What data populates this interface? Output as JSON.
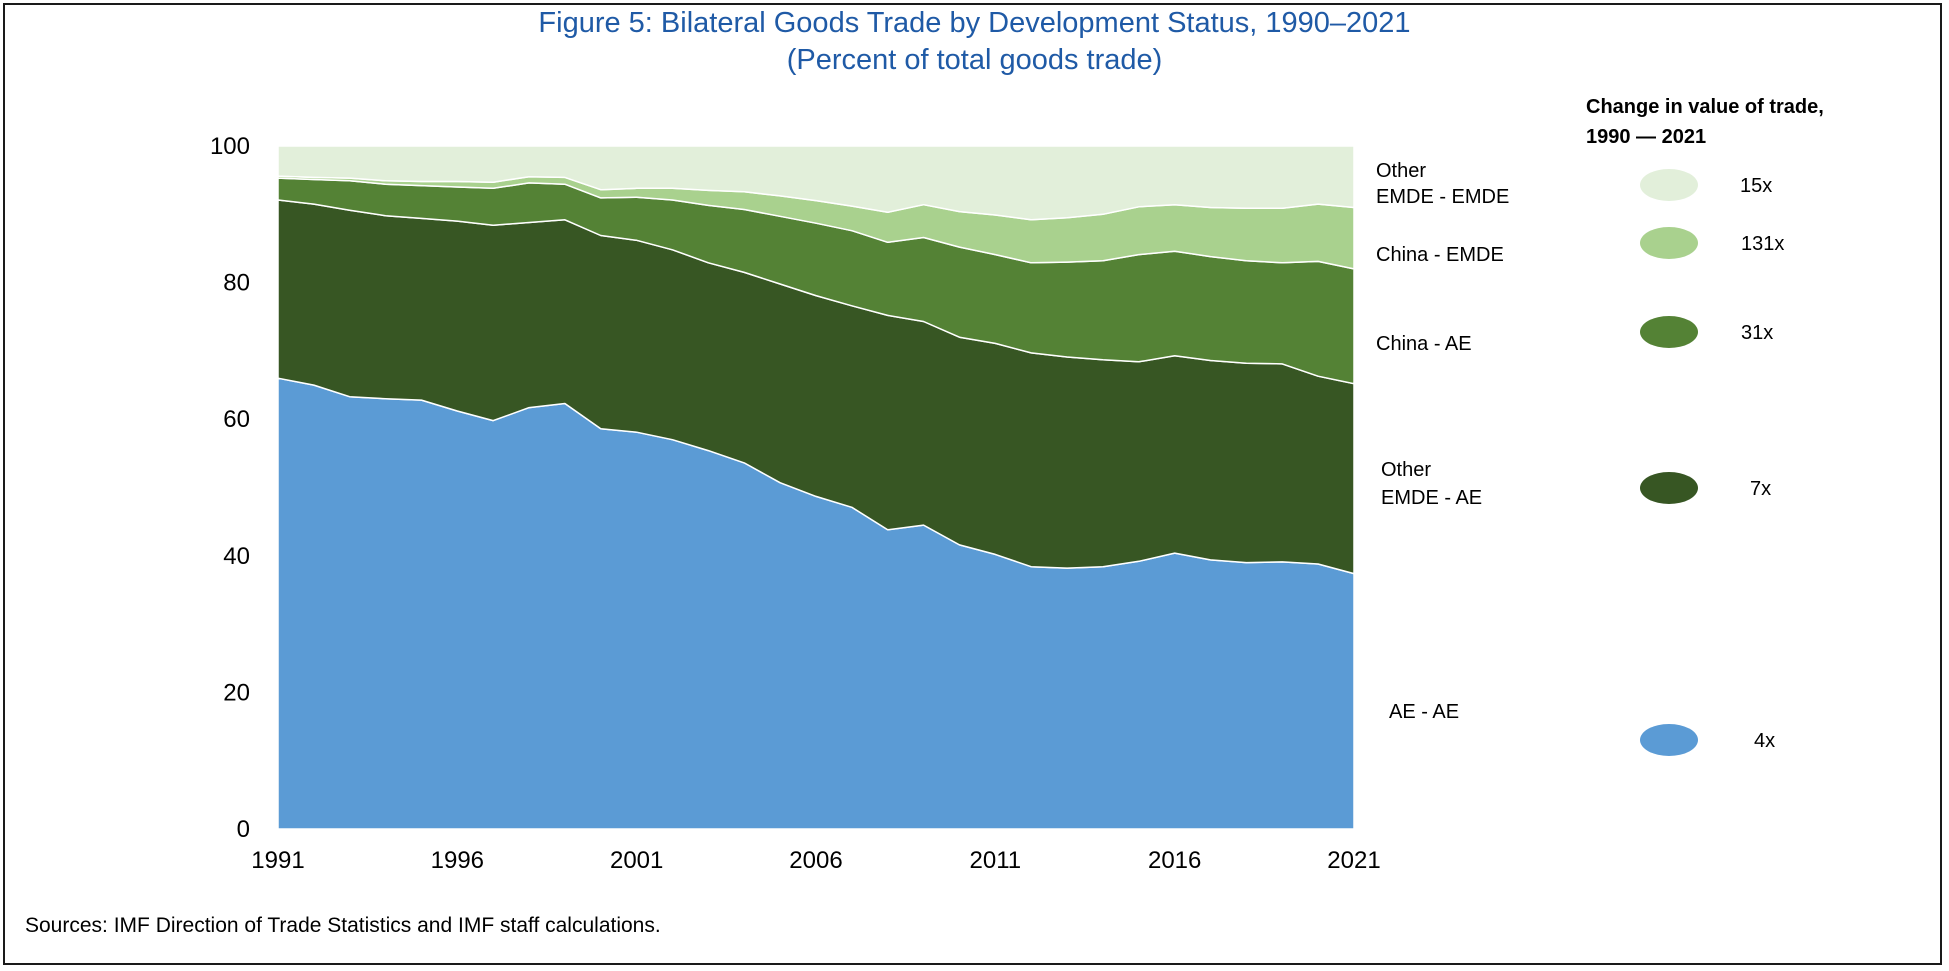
{
  "figure": {
    "title": "Figure 5: Bilateral Goods Trade by Development Status, 1990–2021",
    "subtitle": "(Percent of total goods trade)",
    "source": "Sources: IMF Direction of Trade Statistics and IMF staff calculations."
  },
  "legend": {
    "title_line1": "Change in value of trade,",
    "title_line2": "1990 — 2021"
  },
  "chart_data": {
    "type": "area",
    "stacked": true,
    "x": [
      1991,
      1992,
      1993,
      1994,
      1995,
      1996,
      1997,
      1998,
      1999,
      2000,
      2001,
      2002,
      2003,
      2004,
      2005,
      2006,
      2007,
      2008,
      2009,
      2010,
      2011,
      2012,
      2013,
      2014,
      2015,
      2016,
      2017,
      2018,
      2019,
      2020,
      2021
    ],
    "xticks": [
      1991,
      1996,
      2001,
      2006,
      2011,
      2016,
      2021
    ],
    "ylim": [
      0,
      100
    ],
    "yticks": [
      0,
      20,
      40,
      60,
      80,
      100
    ],
    "grid": false,
    "series": [
      {
        "name": "AE - AE",
        "series_label_lines": [
          "AE - AE"
        ],
        "growth": "4x",
        "color": "#5b9bd5",
        "values": [
          66.0,
          65.0,
          63.3,
          63.0,
          62.8,
          61.2,
          59.8,
          61.7,
          62.3,
          58.6,
          58.1,
          57.0,
          55.4,
          53.6,
          50.7,
          48.7,
          47.1,
          43.8,
          44.5,
          41.6,
          40.2,
          38.4,
          38.2,
          38.4,
          39.2,
          40.4,
          39.4,
          39.0,
          39.1,
          38.8,
          37.4
        ]
      },
      {
        "name": "Other EMDE - AE",
        "series_label_lines": [
          "Other",
          "EMDE - AE"
        ],
        "growth": "7x",
        "color": "#375623",
        "values": [
          26.1,
          26.5,
          27.3,
          26.8,
          26.6,
          27.8,
          28.6,
          27.1,
          26.9,
          28.3,
          28.1,
          27.8,
          27.5,
          27.9,
          29.1,
          29.4,
          29.5,
          31.4,
          29.8,
          30.4,
          30.9,
          31.3,
          30.9,
          30.3,
          29.2,
          28.9,
          29.2,
          29.2,
          29.0,
          27.5,
          27.8
        ]
      },
      {
        "name": "China - AE",
        "series_label_lines": [
          "China - AE"
        ],
        "growth": "31x",
        "color": "#548235",
        "values": [
          3.2,
          3.6,
          4.3,
          4.6,
          4.8,
          5.0,
          5.4,
          5.8,
          5.2,
          5.5,
          6.3,
          7.3,
          8.4,
          9.2,
          9.9,
          10.6,
          11.0,
          10.7,
          12.3,
          13.2,
          13.0,
          13.2,
          13.9,
          14.5,
          15.7,
          15.3,
          15.2,
          15.0,
          14.8,
          16.8,
          16.8
        ]
      },
      {
        "name": "China - EMDE",
        "series_label_lines": [
          "China - EMDE"
        ],
        "growth": "131x",
        "color": "#a9d18e",
        "values": [
          0.3,
          0.3,
          0.4,
          0.5,
          0.6,
          0.8,
          0.9,
          0.9,
          1.0,
          1.2,
          1.3,
          1.7,
          2.2,
          2.6,
          3.0,
          3.3,
          3.6,
          4.4,
          4.8,
          5.2,
          5.8,
          6.3,
          6.5,
          6.8,
          7.0,
          6.8,
          7.2,
          7.7,
          8.0,
          8.4,
          9.0
        ]
      },
      {
        "name": "Other EMDE - EMDE",
        "series_label_lines": [
          "Other",
          "EMDE - EMDE"
        ],
        "growth": "15x",
        "color": "#e2efda",
        "values": [
          4.4,
          4.6,
          4.7,
          5.1,
          5.2,
          5.2,
          5.3,
          4.5,
          4.6,
          6.4,
          6.2,
          6.2,
          6.5,
          6.7,
          7.3,
          8.0,
          8.8,
          9.7,
          8.6,
          9.6,
          10.1,
          10.8,
          10.5,
          10.0,
          8.9,
          8.6,
          9.0,
          9.1,
          9.1,
          8.5,
          9.0
        ]
      }
    ]
  }
}
